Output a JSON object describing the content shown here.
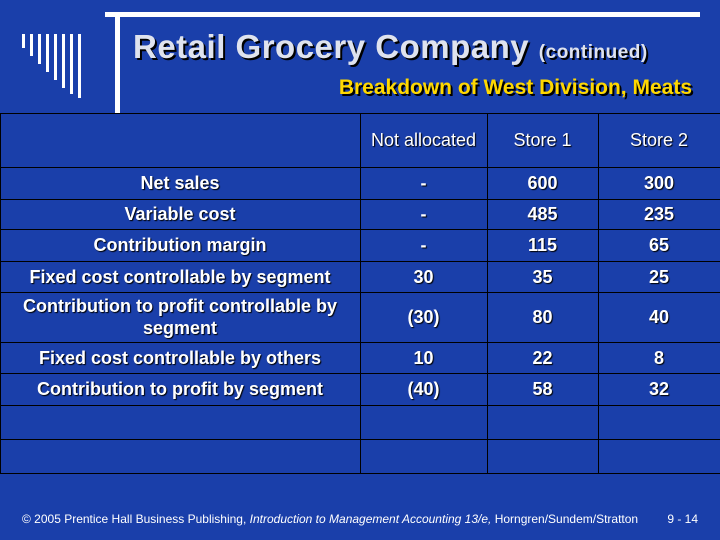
{
  "title": "Retail Grocery Company",
  "title_suffix": "(continued)",
  "subtitle": "Breakdown of West Division, Meats",
  "table": {
    "columns": [
      "Not allocated",
      "Store 1",
      "Store 2"
    ],
    "rows": [
      {
        "label": "Net sales",
        "values": [
          "-",
          "600",
          "300"
        ]
      },
      {
        "label": "Variable cost",
        "values": [
          "-",
          "485",
          "235"
        ]
      },
      {
        "label": "Contribution margin",
        "values": [
          "-",
          "115",
          "65"
        ]
      },
      {
        "label": "Fixed cost controllable by segment",
        "values": [
          "30",
          "35",
          "25"
        ]
      },
      {
        "label": "Contribution to profit controllable by segment",
        "values": [
          "(30)",
          "80",
          "40"
        ]
      },
      {
        "label": "Fixed cost controllable by others",
        "values": [
          "10",
          "22",
          "8"
        ]
      },
      {
        "label": "Contribution to profit by segment",
        "values": [
          "(40)",
          "58",
          "32"
        ]
      }
    ]
  },
  "footer": {
    "prefix": "© 2005 Prentice Hall Business Publishing, ",
    "book": "Introduction to Management Accounting 13/e,",
    "suffix": " Horngren/Sundem/Stratton",
    "page": "9 - 14"
  },
  "colors": {
    "background": "#1a3faa",
    "subtitle": "#ffd800",
    "title": "#dfe3ee"
  }
}
